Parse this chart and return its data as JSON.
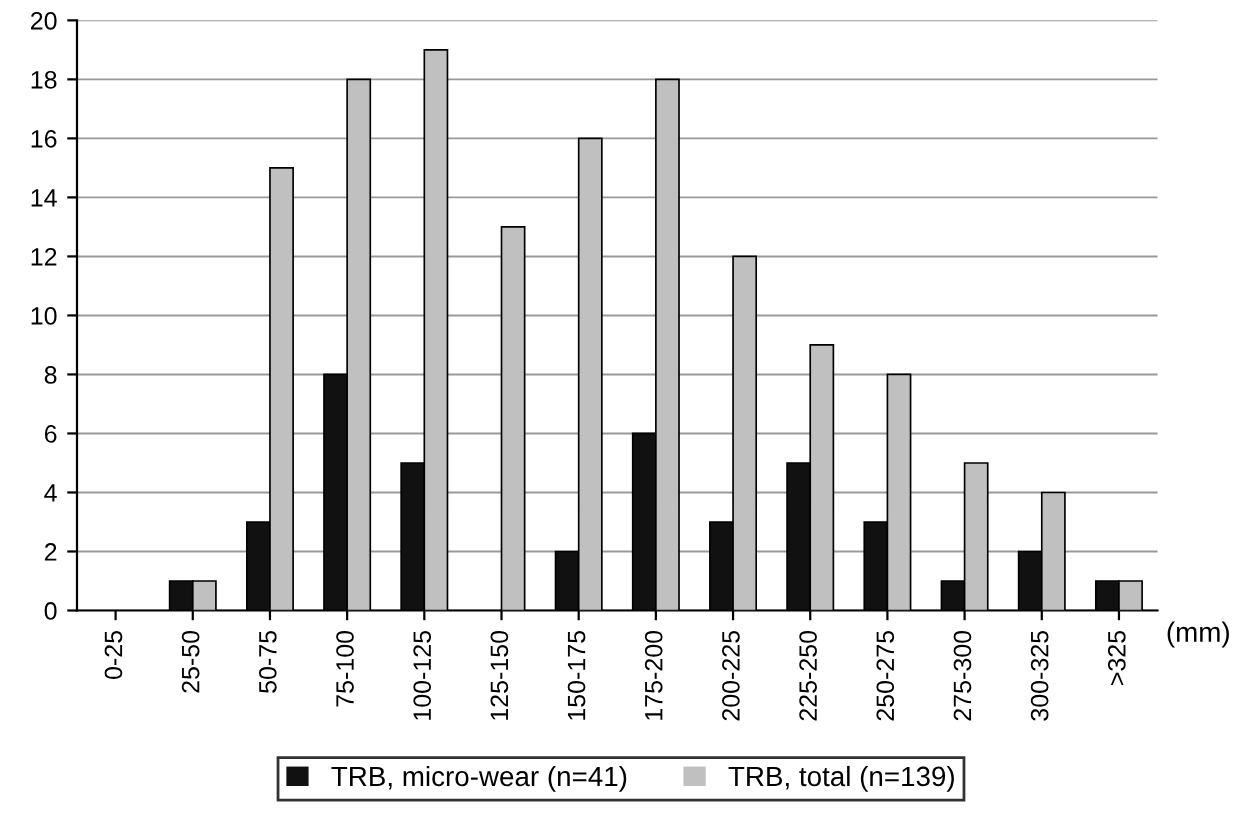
{
  "chart_data": {
    "type": "bar",
    "xlabel": "(mm)",
    "categories": [
      "0-25",
      "25-50",
      "50-75",
      "75-100",
      "100-125",
      "125-150",
      "150-175",
      "175-200",
      "200-225",
      "225-250",
      "250-275",
      "275-300",
      "300-325",
      ">325"
    ],
    "series": [
      {
        "name": "TRB, micro-wear (n=41)",
        "color": "#111111",
        "values": [
          0,
          1,
          3,
          8,
          5,
          0,
          2,
          6,
          3,
          5,
          3,
          1,
          2,
          1
        ]
      },
      {
        "name": "TRB, total (n=139)",
        "color": "#c0c0c0",
        "values": [
          0,
          1,
          15,
          18,
          19,
          13,
          16,
          18,
          12,
          9,
          8,
          5,
          4,
          1
        ]
      }
    ],
    "ylim": [
      0,
      20
    ],
    "yticks": [
      0,
      2,
      4,
      6,
      8,
      10,
      12,
      14,
      16,
      18,
      20
    ],
    "grid": "y",
    "legend": "bottom"
  }
}
